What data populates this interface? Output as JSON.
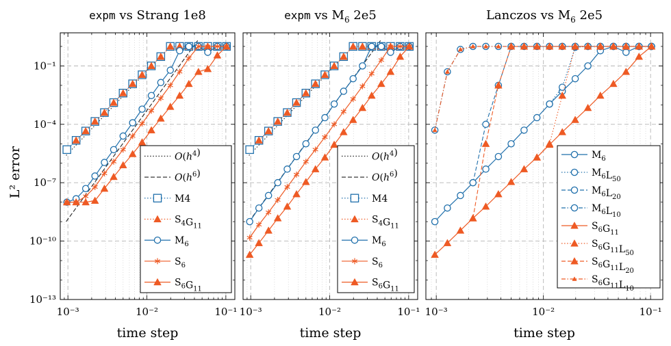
{
  "figure": {
    "ylabel": "L² error",
    "xlabel": "time step"
  },
  "colors": {
    "blue": "#1f6fab",
    "orange": "#ee5a24",
    "black": "#222222",
    "grid": "#b5b5b5"
  },
  "chart_data": [
    {
      "type": "line",
      "title": "expm vs Strang 1e8",
      "title_code": "expm",
      "title_rest": " vs Strang 1e8",
      "xlabel": "time step",
      "ylabel": "L² error",
      "xscale": "log",
      "yscale": "log",
      "xlim": [
        0.0008,
        0.13
      ],
      "ylim": [
        1e-13,
        5
      ],
      "xticks": [
        "10⁻³",
        "10⁻²",
        "10⁻¹"
      ],
      "yticks": [
        "10⁻¹³",
        "10⁻¹⁰",
        "10⁻⁷",
        "10⁻⁴",
        "10⁻¹"
      ],
      "legend_position": "bottom-right",
      "series": [
        {
          "name": "O(h⁴)",
          "name_base": "O(h",
          "name_sup": "4",
          "name_tail": ")",
          "style": "dotted",
          "color": "#222222",
          "marker": "none",
          "x": [
            0.00095,
            0.011
          ],
          "y": [
            2.5e-06,
            0.08
          ]
        },
        {
          "name": "O(h⁶)",
          "name_base": "O(h",
          "name_sup": "6",
          "name_tail": ")",
          "style": "dashed",
          "color": "#222222",
          "marker": "none",
          "x": [
            0.00095,
            0.044
          ],
          "y": [
            1e-09,
            2
          ]
        },
        {
          "name": "M4",
          "name_base": "M4",
          "style": "dotted",
          "color": "#1f6fab",
          "marker": "square",
          "x": [
            0.00097,
            0.00127,
            0.00168,
            0.0022,
            0.0029,
            0.0038,
            0.005,
            0.0066,
            0.0087,
            0.0114,
            0.015,
            0.0198,
            0.026,
            0.034,
            0.045,
            0.059,
            0.078,
            0.102
          ],
          "y": [
            5e-06,
            1.5e-05,
            4.5e-05,
            0.00014,
            0.0004,
            0.0013,
            0.004,
            0.012,
            0.035,
            0.1,
            0.3,
            1,
            1,
            1,
            1,
            1,
            1,
            1
          ]
        },
        {
          "name": "S₄G₁₁",
          "name_base": "S",
          "name_sub": "4",
          "name_base2": "G",
          "name_sub2": "11",
          "style": "dotted",
          "color": "#ee5a24",
          "marker": "triangle",
          "x": [
            0.00127,
            0.00168,
            0.0022,
            0.0029,
            0.0038,
            0.005,
            0.0066,
            0.0087,
            0.0114,
            0.015,
            0.0198,
            0.026,
            0.034,
            0.045,
            0.059,
            0.078,
            0.102
          ],
          "y": [
            1.5e-05,
            4.5e-05,
            0.00014,
            0.0004,
            0.0013,
            0.004,
            0.012,
            0.035,
            0.1,
            0.3,
            1,
            1,
            1,
            1,
            1,
            1,
            1
          ]
        },
        {
          "name": "M₆",
          "name_base": "M",
          "name_sub": "6",
          "style": "solid",
          "color": "#1f6fab",
          "marker": "circle",
          "x": [
            0.00097,
            0.00127,
            0.00168,
            0.0022,
            0.0029,
            0.0038,
            0.005,
            0.0066,
            0.0087,
            0.0114,
            0.015,
            0.0198,
            0.026,
            0.034,
            0.045,
            0.059,
            0.078,
            0.102
          ],
          "y": [
            1e-08,
            1.5e-08,
            5e-08,
            2.2e-07,
            1.1e-06,
            5e-06,
            2.5e-05,
            0.00012,
            0.0006,
            0.003,
            0.014,
            0.06,
            0.6,
            1,
            1,
            0.5,
            1,
            1
          ]
        },
        {
          "name": "S₆",
          "name_base": "S",
          "name_sub": "6",
          "style": "solid",
          "color": "#ee5a24",
          "marker": "asterisk",
          "x": [
            0.00097,
            0.00127,
            0.00168,
            0.0022,
            0.0029,
            0.0038,
            0.005,
            0.0066,
            0.0087,
            0.0114,
            0.015,
            0.0198,
            0.026,
            0.034,
            0.045,
            0.059,
            0.078,
            0.102
          ],
          "y": [
            1e-08,
            1e-08,
            2e-08,
            6e-08,
            3e-07,
            1.2e-06,
            5e-06,
            2.5e-05,
            0.00011,
            0.0005,
            0.0022,
            0.01,
            0.05,
            0.25,
            1,
            1,
            1,
            1
          ]
        },
        {
          "name": "S₆G₁₁",
          "name_base": "S",
          "name_sub": "6",
          "name_base2": "G",
          "name_sub2": "11",
          "style": "solid",
          "color": "#ee5a24",
          "marker": "triangle",
          "x": [
            0.00097,
            0.00127,
            0.00168,
            0.0022,
            0.0029,
            0.0038,
            0.005,
            0.0066,
            0.0087,
            0.0114,
            0.015,
            0.0198,
            0.026,
            0.034,
            0.045,
            0.059,
            0.078,
            0.102
          ],
          "y": [
            1e-08,
            1e-08,
            1e-08,
            1.2e-08,
            5e-08,
            2e-07,
            8e-07,
            3e-06,
            1.2e-05,
            5e-05,
            0.0002,
            0.0008,
            0.003,
            0.012,
            0.05,
            0.07,
            0.35,
            1
          ]
        }
      ]
    },
    {
      "type": "line",
      "title": "expm vs M₆ 2e5",
      "title_code": "expm",
      "title_rest": " vs M",
      "title_sub": "6",
      "title_tail": " 2e5",
      "xlabel": "time step",
      "xscale": "log",
      "yscale": "log",
      "xlim": [
        0.0008,
        0.13
      ],
      "ylim": [
        1e-13,
        5
      ],
      "xticks": [
        "10⁻³",
        "10⁻²",
        "10⁻¹"
      ],
      "legend_position": "bottom-right",
      "series": [
        {
          "name": "O(h⁴)",
          "name_base": "O(h",
          "name_sup": "4",
          "name_tail": ")",
          "style": "dotted",
          "color": "#222222",
          "marker": "none",
          "x": [
            0.00095,
            0.011
          ],
          "y": [
            2.5e-06,
            0.08
          ]
        },
        {
          "name": "O(h⁶)",
          "name_base": "O(h",
          "name_sup": "6",
          "name_tail": ")",
          "style": "dashed",
          "color": "#222222",
          "marker": "none",
          "x": [
            0.00095,
            0.044
          ],
          "y": [
            1e-09,
            2
          ]
        },
        {
          "name": "M4",
          "name_base": "M4",
          "style": "dotted",
          "color": "#1f6fab",
          "marker": "square",
          "x": [
            0.00097,
            0.00127,
            0.00168,
            0.0022,
            0.0029,
            0.0038,
            0.005,
            0.0066,
            0.0087,
            0.0114,
            0.015,
            0.0198,
            0.026,
            0.034,
            0.045,
            0.059,
            0.078,
            0.102
          ],
          "y": [
            5e-06,
            1.5e-05,
            4.5e-05,
            0.00014,
            0.0004,
            0.0013,
            0.004,
            0.012,
            0.035,
            0.1,
            0.3,
            1,
            1,
            1,
            1,
            1,
            1,
            1
          ]
        },
        {
          "name": "S₄G₁₁",
          "name_base": "S",
          "name_sub": "4",
          "name_base2": "G",
          "name_sub2": "11",
          "style": "dotted",
          "color": "#ee5a24",
          "marker": "triangle",
          "x": [
            0.00127,
            0.00168,
            0.0022,
            0.0029,
            0.0038,
            0.005,
            0.0066,
            0.0087,
            0.0114,
            0.015,
            0.0198,
            0.026,
            0.034,
            0.045,
            0.059,
            0.078,
            0.102
          ],
          "y": [
            1.5e-05,
            4.5e-05,
            0.00014,
            0.0004,
            0.0013,
            0.004,
            0.012,
            0.035,
            0.1,
            0.3,
            1,
            1,
            1,
            1,
            1,
            1,
            1
          ]
        },
        {
          "name": "M₆",
          "name_base": "M",
          "name_sub": "6",
          "style": "solid",
          "color": "#1f6fab",
          "marker": "circle",
          "x": [
            0.00097,
            0.00127,
            0.00168,
            0.0022,
            0.0029,
            0.0038,
            0.005,
            0.0066,
            0.0087,
            0.0114,
            0.015,
            0.0198,
            0.026,
            0.034,
            0.045,
            0.059,
            0.078,
            0.102
          ],
          "y": [
            1e-09,
            5e-09,
            2.2e-08,
            1e-07,
            5e-07,
            2.2e-06,
            1e-05,
            5e-05,
            0.00022,
            0.0011,
            0.005,
            0.022,
            0.1,
            1,
            1,
            0.5,
            1,
            1
          ]
        },
        {
          "name": "S₆",
          "name_base": "S",
          "name_sub": "6",
          "style": "solid",
          "color": "#ee5a24",
          "marker": "asterisk",
          "x": [
            0.00097,
            0.00127,
            0.00168,
            0.0022,
            0.0029,
            0.0038,
            0.005,
            0.0066,
            0.0087,
            0.0114,
            0.015,
            0.0198,
            0.026,
            0.034,
            0.045,
            0.059,
            0.078,
            0.102
          ],
          "y": [
            1.5e-10,
            7e-10,
            3e-09,
            1.3e-08,
            6e-08,
            2.6e-07,
            1.2e-06,
            5e-06,
            2.2e-05,
            0.0001,
            0.00045,
            0.002,
            0.009,
            0.04,
            0.2,
            1,
            1,
            1
          ]
        },
        {
          "name": "S₆G₁₁",
          "name_base": "S",
          "name_sub": "6",
          "name_base2": "G",
          "name_sub2": "11",
          "style": "solid",
          "color": "#ee5a24",
          "marker": "triangle",
          "x": [
            0.00097,
            0.00127,
            0.00168,
            0.0022,
            0.0029,
            0.0038,
            0.005,
            0.0066,
            0.0087,
            0.0114,
            0.015,
            0.0198,
            0.026,
            0.034,
            0.045,
            0.059,
            0.078,
            0.102
          ],
          "y": [
            2e-11,
            8e-11,
            3.5e-10,
            1.5e-09,
            6e-09,
            2.6e-08,
            1.1e-07,
            5e-07,
            2e-06,
            9e-06,
            4e-05,
            0.00017,
            0.0007,
            0.003,
            0.012,
            0.05,
            0.3,
            1
          ]
        }
      ]
    },
    {
      "type": "line",
      "title": "Lanczos vs M₆ 2e5",
      "title_code": "",
      "title_rest": "Lanczos vs M",
      "title_sub": "6",
      "title_tail": " 2e5",
      "xlabel": "time step",
      "xscale": "log",
      "yscale": "log",
      "xlim": [
        0.0008,
        0.13
      ],
      "ylim": [
        1e-13,
        5
      ],
      "xticks": [
        "10⁻³",
        "10⁻²",
        "10⁻¹"
      ],
      "legend_position": "right",
      "series": [
        {
          "name": "M₆",
          "name_base": "M",
          "name_sub": "6",
          "style": "solid",
          "color": "#1f6fab",
          "marker": "circle",
          "x": [
            0.00097,
            0.00127,
            0.00168,
            0.0022,
            0.0029,
            0.0038,
            0.005,
            0.0066,
            0.0087,
            0.0114,
            0.015,
            0.0198,
            0.026,
            0.034,
            0.045,
            0.059,
            0.078,
            0.102
          ],
          "y": [
            1e-09,
            5e-09,
            2.2e-08,
            1e-07,
            5e-07,
            2.2e-06,
            1e-05,
            5e-05,
            0.00022,
            0.0011,
            0.005,
            0.022,
            0.1,
            0.6,
            1,
            0.5,
            1,
            1
          ]
        },
        {
          "name": "M₆L₅₀",
          "name_base": "M",
          "name_sub": "6",
          "name_base2": "L",
          "name_sub2": "50",
          "style": "dotted",
          "color": "#1f6fab",
          "marker": "circle",
          "x": [
            0.0114,
            0.015,
            0.0198,
            0.026,
            0.034,
            0.045,
            0.059,
            0.078,
            0.102
          ],
          "y": [
            0.0011,
            0.008,
            0.9,
            1,
            1,
            1,
            1,
            1,
            1
          ]
        },
        {
          "name": "M₆L₂₀",
          "name_base": "M",
          "name_sub": "6",
          "name_base2": "L",
          "name_sub2": "20",
          "style": "dashed",
          "color": "#1f6fab",
          "marker": "circle",
          "x": [
            0.0022,
            0.0029,
            0.0038,
            0.005,
            0.0066,
            0.0087,
            0.0114,
            0.015,
            0.0198,
            0.026,
            0.034,
            0.045,
            0.059,
            0.078,
            0.102
          ],
          "y": [
            1e-07,
            0.0001,
            0.01,
            1,
            1,
            1,
            1,
            1,
            1,
            1,
            1,
            1,
            1,
            1,
            1
          ]
        },
        {
          "name": "M₆L₁₀",
          "name_base": "M",
          "name_sub": "6",
          "name_base2": "L",
          "name_sub2": "10",
          "style": "dashdot",
          "color": "#1f6fab",
          "marker": "circle",
          "x": [
            0.00097,
            0.00127,
            0.00168,
            0.0022,
            0.0029,
            0.0038,
            0.005,
            0.0066,
            0.0087,
            0.0114,
            0.015,
            0.0198,
            0.026,
            0.034,
            0.045,
            0.059,
            0.078,
            0.102
          ],
          "y": [
            5e-05,
            0.05,
            0.7,
            1,
            1,
            1,
            1,
            1,
            1,
            1,
            1,
            1,
            1,
            1,
            1,
            1,
            1,
            1
          ]
        },
        {
          "name": "S₆G₁₁",
          "name_base": "S",
          "name_sub": "6",
          "name_base2": "G",
          "name_sub2": "11",
          "style": "solid",
          "color": "#ee5a24",
          "marker": "triangle",
          "x": [
            0.00097,
            0.00127,
            0.00168,
            0.0022,
            0.0029,
            0.0038,
            0.005,
            0.0066,
            0.0087,
            0.0114,
            0.015,
            0.0198,
            0.026,
            0.034,
            0.045,
            0.059,
            0.078,
            0.102
          ],
          "y": [
            2e-11,
            8e-11,
            3.5e-10,
            1.5e-09,
            6e-09,
            2.6e-08,
            1.1e-07,
            5e-07,
            2e-06,
            9e-06,
            4e-05,
            0.00017,
            0.0007,
            0.003,
            0.012,
            0.05,
            0.3,
            1
          ]
        },
        {
          "name": "S₆G₁₁L₅₀",
          "name_base": "S",
          "name_sub": "6",
          "name_base2": "G",
          "name_sub2": "11",
          "name_base3": "L",
          "name_sub3": "50",
          "style": "dotted",
          "color": "#ee5a24",
          "marker": "triangle",
          "x": [
            0.0087,
            0.0114,
            0.015,
            0.0198,
            0.026,
            0.034,
            0.045,
            0.059,
            0.078,
            0.102
          ],
          "y": [
            2e-06,
            1e-05,
            0.003,
            1,
            1,
            1,
            1,
            1,
            1,
            1
          ]
        },
        {
          "name": "S₆G₁₁L₂₀",
          "name_base": "S",
          "name_sub": "6",
          "name_base2": "G",
          "name_sub2": "11",
          "name_base3": "L",
          "name_sub3": "20",
          "style": "dashed",
          "color": "#ee5a24",
          "marker": "triangle",
          "x": [
            0.0022,
            0.0029,
            0.0038,
            0.005,
            0.0066,
            0.0087,
            0.0114,
            0.015,
            0.0198,
            0.026,
            0.034,
            0.045,
            0.059,
            0.078,
            0.102
          ],
          "y": [
            1.5e-09,
            1e-05,
            0.01,
            1,
            1,
            1,
            1,
            1,
            1,
            1,
            1,
            1,
            1,
            1,
            1
          ]
        },
        {
          "name": "S₆G₁₁L₁₀",
          "name_base": "S",
          "name_sub": "6",
          "name_base2": "G",
          "name_sub2": "11",
          "name_base3": "L",
          "name_sub3": "10",
          "style": "dashdot",
          "color": "#ee5a24",
          "marker": "triangle-small",
          "x": [
            0.00097,
            0.00127,
            0.00168,
            0.0022,
            0.0029,
            0.0038,
            0.005,
            0.0066,
            0.0087,
            0.0114,
            0.015,
            0.0198,
            0.026,
            0.034,
            0.045,
            0.059,
            0.078,
            0.102
          ],
          "y": [
            5e-05,
            0.05,
            0.7,
            1,
            1,
            1,
            1,
            1,
            1,
            1,
            1,
            1,
            1,
            1,
            1,
            1,
            1,
            1
          ]
        }
      ]
    }
  ]
}
